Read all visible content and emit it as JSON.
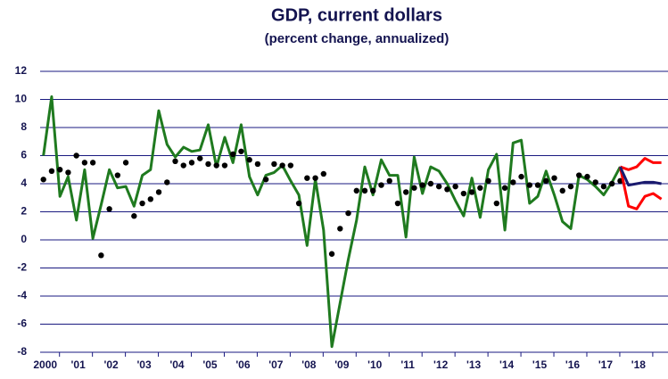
{
  "chart_data": {
    "type": "line",
    "title": "GDP, current dollars",
    "subtitle": "(percent change, annualized)",
    "xlim": [
      1999.9,
      2018.95
    ],
    "xticks": [
      {
        "value": 2000,
        "label": "2000"
      },
      {
        "value": 2001,
        "label": "'01"
      },
      {
        "value": 2002,
        "label": "'02"
      },
      {
        "value": 2003,
        "label": "'03"
      },
      {
        "value": 2004,
        "label": "'04"
      },
      {
        "value": 2005,
        "label": "'05"
      },
      {
        "value": 2006,
        "label": "'06"
      },
      {
        "value": 2007,
        "label": "'07"
      },
      {
        "value": 2008,
        "label": "'08"
      },
      {
        "value": 2009,
        "label": "'09"
      },
      {
        "value": 2010,
        "label": "'10"
      },
      {
        "value": 2011,
        "label": "'11"
      },
      {
        "value": 2012,
        "label": "'12"
      },
      {
        "value": 2013,
        "label": "'13"
      },
      {
        "value": 2014,
        "label": "'14"
      },
      {
        "value": 2015,
        "label": "'15"
      },
      {
        "value": 2016,
        "label": "'16"
      },
      {
        "value": 2017,
        "label": "'17"
      },
      {
        "value": 2018,
        "label": "'18"
      }
    ],
    "ylim": [
      -8,
      12
    ],
    "yticks": [
      -8,
      -6,
      -4,
      -2,
      0,
      2,
      4,
      6,
      8,
      10,
      12
    ],
    "grid": true,
    "series": [
      {
        "kind": "line",
        "color": "#1f7a1f",
        "x": [
          2000,
          2000.25,
          2000.5,
          2000.75,
          2001,
          2001.25,
          2001.5,
          2001.75,
          2002,
          2002.25,
          2002.5,
          2002.75,
          2003,
          2003.25,
          2003.5,
          2003.75,
          2004,
          2004.25,
          2004.5,
          2004.75,
          2005,
          2005.25,
          2005.5,
          2005.75,
          2006,
          2006.25,
          2006.5,
          2006.75,
          2007,
          2007.25,
          2007.5,
          2007.75,
          2008,
          2008.25,
          2008.5,
          2008.75,
          2009,
          2009.25,
          2009.5,
          2009.75,
          2010,
          2010.25,
          2010.5,
          2010.75,
          2011,
          2011.25,
          2011.5,
          2011.75,
          2012,
          2012.25,
          2012.5,
          2012.75,
          2013,
          2013.25,
          2013.5,
          2013.75,
          2014,
          2014.25,
          2014.5,
          2014.75,
          2015,
          2015.25,
          2015.5,
          2015.75,
          2016,
          2016.25,
          2016.5,
          2016.75,
          2017,
          2017.25,
          2017.5
        ],
        "values": [
          6.0,
          10.2,
          3.1,
          4.5,
          1.4,
          5.0,
          0.1,
          2.5,
          5.0,
          3.7,
          3.8,
          2.4,
          4.6,
          5.0,
          9.2,
          6.8,
          5.9,
          6.6,
          6.3,
          6.4,
          8.2,
          5.2,
          7.3,
          5.5,
          8.2,
          4.5,
          3.2,
          4.6,
          4.8,
          5.3,
          4.2,
          3.2,
          -0.4,
          4.3,
          0.7,
          -7.6,
          -4.5,
          -1.4,
          1.4,
          5.2,
          3.2,
          5.7,
          4.6,
          4.6,
          0.2,
          5.9,
          3.3,
          5.2,
          4.9,
          4.0,
          2.8,
          1.7,
          4.4,
          1.6,
          5.0,
          6.1,
          0.7,
          6.9,
          7.1,
          2.6,
          3.1,
          4.9,
          3.2,
          1.3,
          0.8,
          4.6,
          4.3,
          3.8,
          3.2,
          4.1,
          5.2
        ]
      },
      {
        "kind": "scatter",
        "color": "#000000",
        "x": [
          2000,
          2000.25,
          2000.5,
          2000.75,
          2001,
          2001.25,
          2001.5,
          2001.75,
          2002,
          2002.25,
          2002.5,
          2002.75,
          2003,
          2003.25,
          2003.5,
          2003.75,
          2004,
          2004.25,
          2004.5,
          2004.75,
          2005,
          2005.25,
          2005.5,
          2005.75,
          2006,
          2006.25,
          2006.5,
          2006.75,
          2007,
          2007.25,
          2007.5,
          2007.75,
          2008,
          2008.25,
          2008.5,
          2008.75,
          2009,
          2009.25,
          2009.5,
          2009.75,
          2010,
          2010.25,
          2010.5,
          2010.75,
          2011,
          2011.25,
          2011.5,
          2011.75,
          2012,
          2012.25,
          2012.5,
          2012.75,
          2013,
          2013.25,
          2013.5,
          2013.75,
          2014,
          2014.25,
          2014.5,
          2014.75,
          2015,
          2015.25,
          2015.5,
          2015.75,
          2016,
          2016.25,
          2016.5,
          2016.75,
          2017,
          2017.25,
          2017.5
        ],
        "values": [
          4.3,
          4.9,
          5.0,
          4.8,
          6.0,
          5.5,
          5.5,
          -1.1,
          2.2,
          4.6,
          5.5,
          1.7,
          2.6,
          2.9,
          3.4,
          4.1,
          5.6,
          5.3,
          5.5,
          5.8,
          5.4,
          5.3,
          5.3,
          6.1,
          6.3,
          5.7,
          5.4,
          4.3,
          5.4,
          5.3,
          5.3,
          2.6,
          4.4,
          4.4,
          4.7,
          -1.0,
          0.8,
          1.9,
          3.5,
          3.5,
          3.5,
          3.9,
          4.2,
          2.6,
          3.4,
          3.7,
          3.9,
          4.0,
          3.8,
          3.6,
          3.8,
          3.3,
          3.4,
          3.7,
          4.2,
          2.6,
          3.7,
          4.1,
          4.5,
          3.9,
          3.9,
          4.2,
          4.4,
          3.5,
          3.8,
          4.6,
          4.5,
          4.1,
          3.8,
          4.0,
          4.2
        ]
      },
      {
        "kind": "line",
        "color": "#ff0000",
        "x": [
          2017.5,
          2017.75,
          2018,
          2018.25,
          2018.5,
          2018.75
        ],
        "values": [
          5.2,
          5.0,
          5.2,
          5.8,
          5.5,
          5.5
        ]
      },
      {
        "kind": "line",
        "color": "#ff0000",
        "x": [
          2017.5,
          2017.75,
          2018,
          2018.25,
          2018.5,
          2018.75
        ],
        "values": [
          5.2,
          2.4,
          2.2,
          3.1,
          3.3,
          2.9
        ]
      },
      {
        "kind": "line",
        "color": "#1a1a6e",
        "x": [
          2017.5,
          2017.75,
          2018,
          2018.25,
          2018.5,
          2018.75
        ],
        "values": [
          5.2,
          3.9,
          4.0,
          4.1,
          4.1,
          4.0
        ]
      }
    ]
  }
}
